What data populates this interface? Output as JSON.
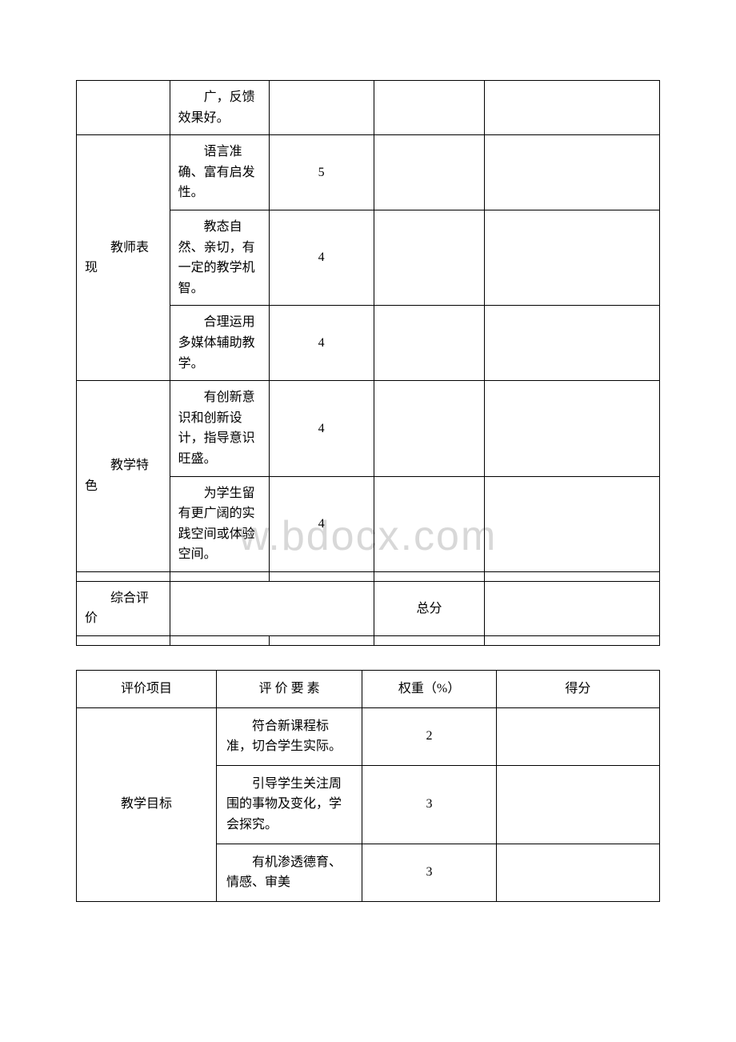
{
  "watermark": "w.bdocx.com",
  "table1": {
    "rows": [
      {
        "category": "",
        "desc": "广，反馈效果好。",
        "weight": ""
      },
      {
        "category": "教师表现",
        "desc": "语言准确、富有启发性。",
        "weight": "5"
      },
      {
        "category": "",
        "desc": "教态自然、亲切，有一定的教学机智。",
        "weight": "4"
      },
      {
        "category": "",
        "desc": "合理运用多媒体辅助教学。",
        "weight": "4"
      },
      {
        "category": "教学特色",
        "desc": "有创新意识和创新设计，指导意识旺盛。",
        "weight": "4"
      },
      {
        "category": "",
        "desc": "为学生留有更广阔的实践空间或体验空间。",
        "weight": "4"
      }
    ],
    "summary_label": "综合评价",
    "total_label": "总分"
  },
  "table2": {
    "headers": {
      "category": "评价项目",
      "desc": "评 价 要 素",
      "weight": "权重（%）",
      "score": "得分"
    },
    "rows": [
      {
        "category": "教学目标",
        "desc": "符合新课程标准，切合学生实际。",
        "weight": "2"
      },
      {
        "category": "",
        "desc": "引导学生关注周围的事物及变化，学会探究。",
        "weight": "3"
      },
      {
        "category": "",
        "desc": "有机渗透德育、情感、审美",
        "weight": "3"
      }
    ]
  }
}
